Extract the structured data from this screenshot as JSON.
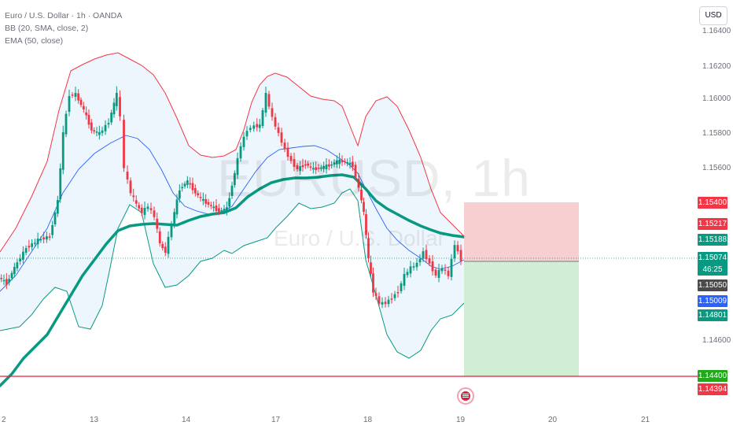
{
  "legend": {
    "symbol_line": "Euro / U.S. Dollar · 1h · OANDA",
    "bb_line": "BB (20, SMA, close, 2)",
    "ema_line": "EMA (50, close)"
  },
  "currency_button": "USD",
  "watermark": {
    "symbol": "EURUSD, 1h",
    "description": "Euro / U.S. Dollar"
  },
  "price_axis_labels": [
    "1.16400",
    "1.16200",
    "1.16000",
    "1.15800",
    "1.15600",
    "1.14600"
  ],
  "price_tags": {
    "stop_loss": "1.15400",
    "bb_upper": "1.15217",
    "ema": "1.15188",
    "last": "1.15074",
    "countdown": "46:25",
    "bb_basis": "1.15050",
    "bb_basis_blue": "1.15009",
    "bb_lower": "1.14801",
    "take_profit": "1.14400",
    "level_line": "1.14394"
  },
  "time_axis_labels": [
    "2",
    "13",
    "14",
    "17",
    "18",
    "19",
    "20",
    "21"
  ],
  "colors": {
    "up_candle": "#089981",
    "down_candle": "#f23645",
    "bb_upper": "#f23645",
    "bb_lower": "#089981",
    "bb_basis": "#2962ff",
    "bb_fill": "#e3f0fb",
    "ema": "#089981",
    "stop_zone": "#f7c7c9",
    "target_zone": "#c8ebcc",
    "level_line": "#e0203a"
  },
  "event_icon": "us-flag-event-icon"
}
